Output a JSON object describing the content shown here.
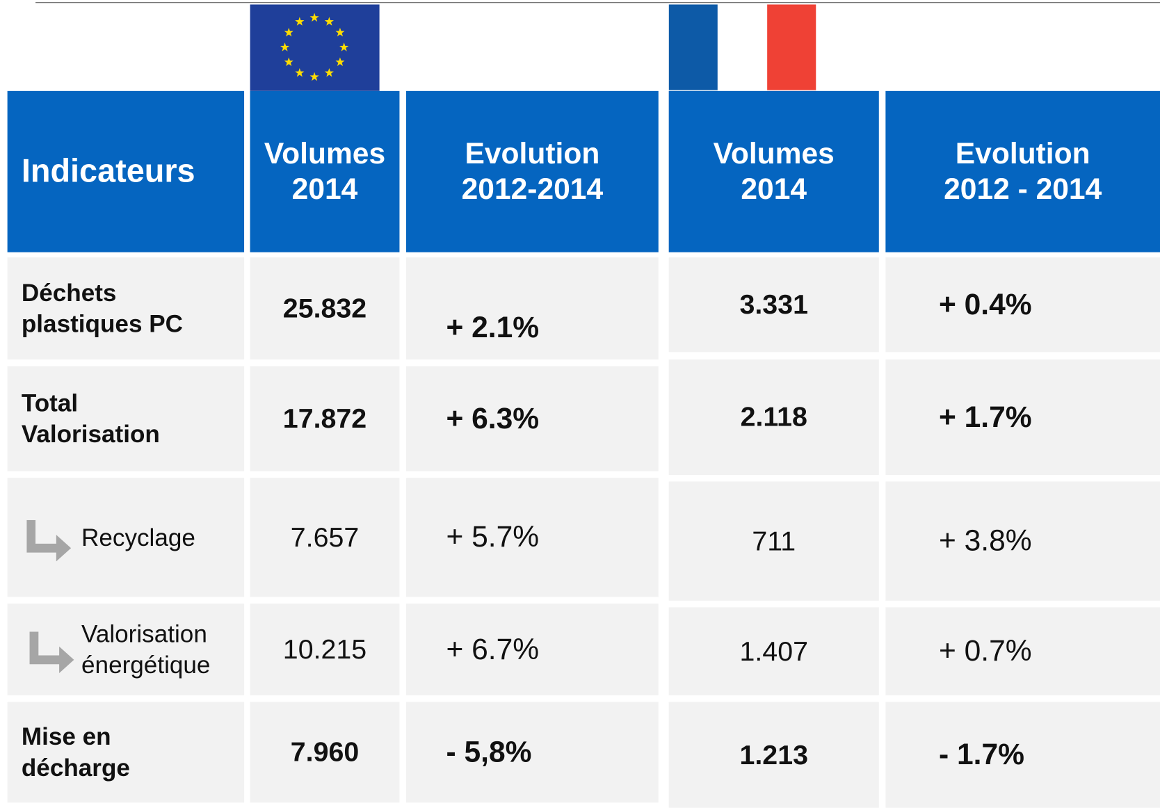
{
  "header": {
    "columns": [
      [
        "Indicateurs"
      ],
      [
        "Volumes",
        "2014"
      ],
      [
        "Evolution",
        "2012-2014"
      ],
      [
        "Volumes",
        "2014"
      ],
      [
        "Evolution",
        "2012 - 2014"
      ]
    ]
  },
  "rows": [
    {
      "label": [
        "Déchets",
        "plastiques PC"
      ],
      "cells": [
        "25.832",
        "+ 2.1%",
        "3.331",
        "+ 0.4%"
      ]
    },
    {
      "label": [
        "Total",
        "Valorisation"
      ],
      "cells": [
        "17.872",
        "+ 6.3%",
        "2.118",
        "+ 1.7%"
      ]
    },
    {
      "label": [
        "Recyclage"
      ],
      "cells": [
        "7.657",
        "+ 5.7%",
        "711",
        "+ 3.8%"
      ]
    },
    {
      "label": [
        "Valorisation",
        "énergétique"
      ],
      "cells": [
        "10.215",
        "+ 6.7%",
        "1.407",
        "+ 0.7%"
      ]
    },
    {
      "label": [
        "Mise en",
        "décharge"
      ],
      "cells": [
        "7.960",
        "- 5,8%",
        "1.213",
        "- 1.7%"
      ]
    }
  ]
}
